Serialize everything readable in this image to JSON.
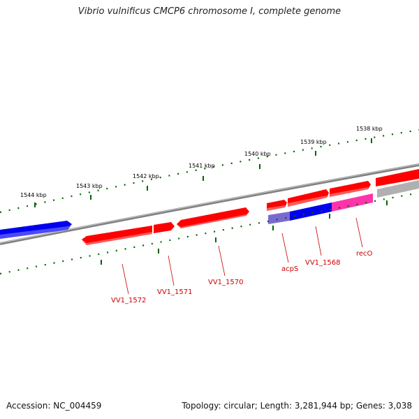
{
  "header": {
    "title": "Vibrio vulnificus CMCP6 chromosome I, complete genome"
  },
  "footer": {
    "accession": "Accession: NC_004459",
    "summary": "Topology: circular; Length: 3,281,944 bp; Genes: 3,038"
  },
  "colors": {
    "forward_gene": "#ff0000",
    "reverse_gene": "#0000ee",
    "rna_gene": "#ff33aa",
    "other_feature": "#b0b0b0",
    "backbone": "#808080",
    "ticks": "#006400",
    "gene_label": "#cc0000"
  },
  "scale": {
    "unit": "kbp",
    "labels": [
      "1544 kbp",
      "1543 kbp",
      "1542 kbp",
      "1541 kbp",
      "1540 kbp",
      "1539 kbp",
      "1538 kbp"
    ]
  },
  "features": [
    {
      "name": "",
      "strand": "reverse",
      "type": "gene",
      "color": "reverse"
    },
    {
      "name": "",
      "strand": "forward",
      "type": "gene",
      "color": "forward"
    },
    {
      "name": "",
      "strand": "forward",
      "type": "gene",
      "color": "forward"
    },
    {
      "name": "",
      "strand": "forward",
      "type": "gene",
      "color": "forward"
    },
    {
      "name": "",
      "strand": "forward",
      "type": "gene",
      "color": "forward"
    },
    {
      "name": "",
      "strand": "forward",
      "type": "gene",
      "color": "forward"
    },
    {
      "name": "",
      "strand": "forward",
      "type": "gene",
      "color": "forward"
    },
    {
      "name": "",
      "strand": "forward",
      "type": "gene",
      "color": "forward"
    },
    {
      "name": "",
      "strand": "forward",
      "type": "gene",
      "color": "forward"
    },
    {
      "name": "",
      "strand": "forward",
      "type": "gene",
      "color": "forward"
    },
    {
      "name": "",
      "strand": "reverse",
      "type": "gene",
      "color": "reverse"
    },
    {
      "name": "",
      "strand": "reverse",
      "type": "gene",
      "color": "rna"
    },
    {
      "name": "",
      "strand": "forward",
      "type": "other",
      "color": "other"
    }
  ],
  "gene_labels": [
    "VV1_1572",
    "VV1_1571",
    "VV1_1570",
    "acpS",
    "VV1_1568",
    "recO"
  ]
}
